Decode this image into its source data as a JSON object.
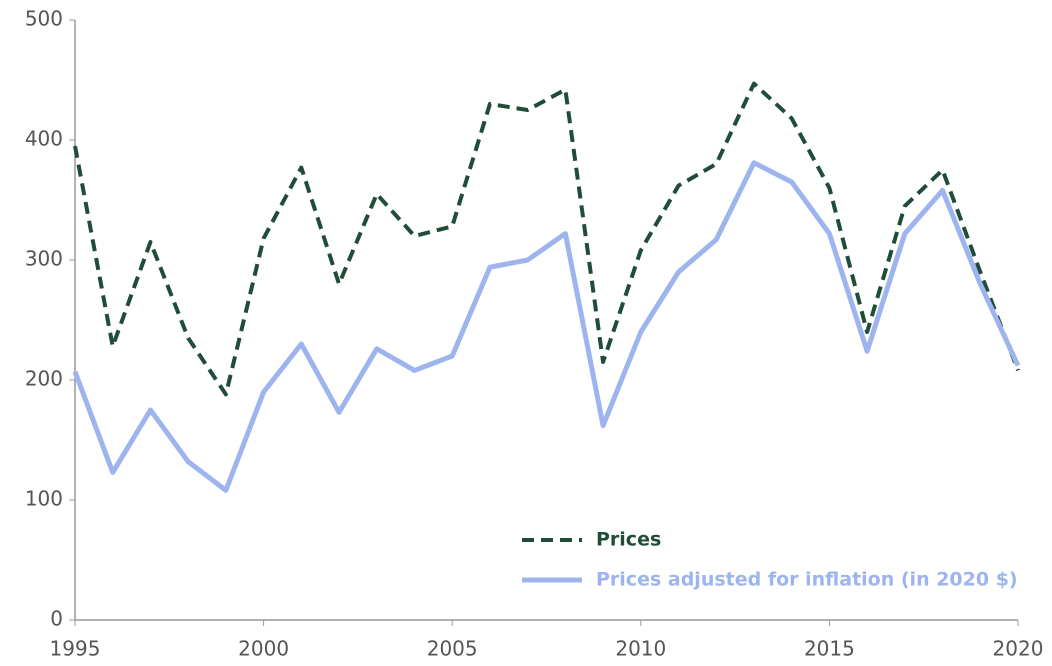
{
  "chart_data": {
    "type": "line",
    "x": [
      1995,
      1996,
      1997,
      1998,
      1999,
      2000,
      2001,
      2002,
      2003,
      2004,
      2005,
      2006,
      2007,
      2008,
      2009,
      2010,
      2011,
      2012,
      2013,
      2014,
      2015,
      2016,
      2017,
      2018,
      2019,
      2020
    ],
    "series": [
      {
        "name": "Prices",
        "color": "#1f4d38",
        "dash": true,
        "values": [
          395,
          228,
          315,
          235,
          188,
          318,
          377,
          280,
          355,
          320,
          328,
          430,
          425,
          442,
          215,
          308,
          362,
          380,
          447,
          418,
          360,
          240,
          345,
          375,
          290,
          208
        ]
      },
      {
        "name": "Prices adjusted for inflation (in 2020 $)",
        "color": "#9db4ee",
        "dash": false,
        "values": [
          207,
          123,
          175,
          132,
          108,
          190,
          230,
          173,
          226,
          208,
          220,
          294,
          300,
          322,
          162,
          240,
          290,
          317,
          381,
          365,
          322,
          224,
          322,
          358,
          280,
          212
        ]
      }
    ],
    "xlim": [
      1995,
      2020
    ],
    "xticks": [
      1995,
      2000,
      2005,
      2010,
      2015,
      2020
    ],
    "ylim": [
      0,
      500
    ],
    "yticks": [
      0,
      100,
      200,
      300,
      400,
      500
    ],
    "grid": false,
    "legend": "lower right"
  }
}
